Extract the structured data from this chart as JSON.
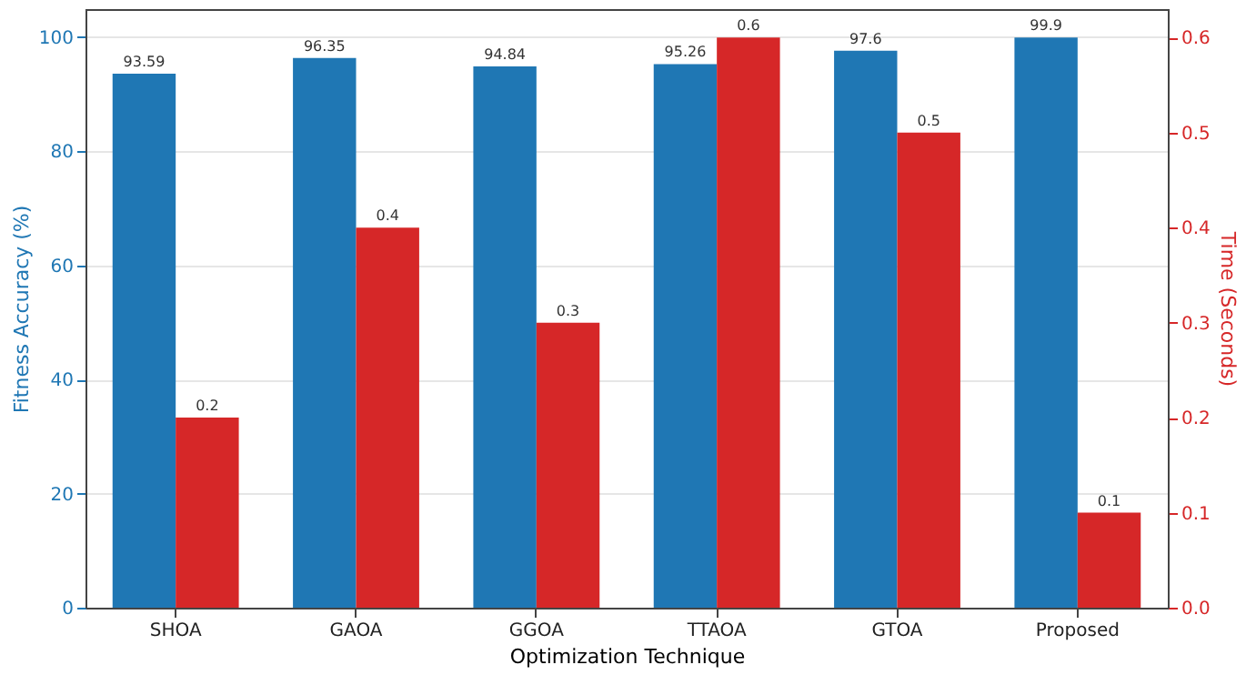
{
  "chart_data": {
    "type": "bar",
    "xlabel": "Optimization Technique",
    "ylabel": "Fitness Accuracy (%)",
    "y2label": "Time (Seconds)",
    "categories": [
      "SHOA",
      "GAOA",
      "GGOA",
      "TTAOA",
      "GTOA",
      "Proposed"
    ],
    "series": [
      {
        "color": "#1f77b4",
        "values": [
          93.59,
          96.35,
          94.84,
          95.26,
          97.6,
          99.9
        ]
      },
      {
        "color": "#d62728",
        "values": [
          0.2,
          0.4,
          0.3,
          0.6,
          0.5,
          0.1
        ],
        "axis": "y2"
      }
    ],
    "ylim": [
      0,
      104.9
    ],
    "yticks": [
      0,
      20,
      40,
      60,
      80,
      100
    ],
    "y2lim": [
      0,
      0.63
    ],
    "y2ticks": [
      {
        "value": 0,
        "label": "0.0"
      },
      0.1,
      0.2,
      0.3,
      0.4,
      0.5,
      0.6
    ],
    "data_labels": true,
    "grid": "y"
  }
}
